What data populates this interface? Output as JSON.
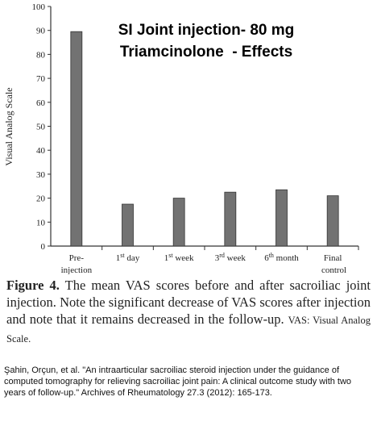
{
  "chart_data": {
    "type": "bar",
    "title": [
      "SI Joint injection- 80 mg",
      "Triamcinolone  - Effects"
    ],
    "y_label": "Visual Analog Scale",
    "categories": [
      "Pre-injection",
      "1st day",
      "1st week",
      "3rd week",
      "6th month",
      "Final control"
    ],
    "values": [
      89.5,
      17.5,
      20,
      22.5,
      23.5,
      21
    ],
    "color": "#727272",
    "ylim": [
      0,
      100
    ],
    "yticks": [
      0,
      10,
      20,
      30,
      40,
      50,
      60,
      70,
      80,
      90,
      100
    ],
    "grid": false
  },
  "caption": {
    "label": "Figure 4.",
    "text": "The mean VAS scores before and after sacroiliac joint injection. Note the significant decrease of VAS scores after injection and note that it remains decreased in the follow-up.",
    "abbreviation": "VAS: Visual Analog Scale."
  },
  "citation": "Şahin, Orçun, et al. \"An intraarticular sacroiliac steroid injection under the guidance of computed tomography for relieving sacroiliac joint pain: A clinical outcome study with two years of follow-up.\" Archives of Rheumatology 27.3 (2012): 165-173."
}
